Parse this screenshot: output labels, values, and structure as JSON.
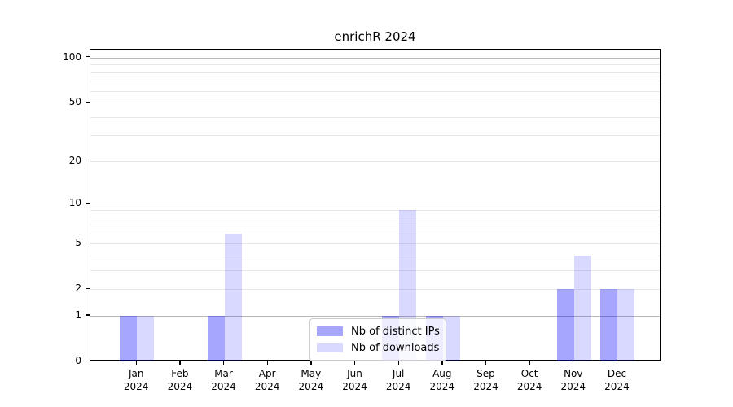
{
  "chart_data": {
    "type": "bar",
    "title": "enrichR 2024",
    "categories": [
      "Jan",
      "Feb",
      "Mar",
      "Apr",
      "May",
      "Jun",
      "Jul",
      "Aug",
      "Sep",
      "Oct",
      "Nov",
      "Dec"
    ],
    "category_year": "2024",
    "series": [
      {
        "name": "Nb of distinct IPs",
        "color": "rgba(0,0,255,0.35)",
        "values": [
          1,
          0,
          1,
          0,
          0,
          0,
          1,
          1,
          0,
          0,
          2,
          2
        ]
      },
      {
        "name": "Nb of downloads",
        "color": "rgba(0,0,255,0.15)",
        "values": [
          1,
          0,
          6,
          0,
          0,
          0,
          9,
          1,
          0,
          0,
          4,
          2
        ]
      }
    ],
    "xlabel": "",
    "ylabel": "",
    "yscale": "log1p",
    "ylim": [
      0,
      113
    ],
    "yticks": [
      0,
      1,
      2,
      5,
      10,
      20,
      50,
      100
    ],
    "grid_major": [
      1,
      10,
      100
    ],
    "grid_minor": [
      2,
      3,
      4,
      5,
      6,
      7,
      8,
      9,
      20,
      30,
      40,
      50,
      60,
      70,
      80,
      90
    ],
    "grid": "on",
    "legend_position": "lower center"
  },
  "colors": {
    "bar_distinct_ips": "rgba(0,0,255,0.35)",
    "bar_downloads": "rgba(0,0,255,0.15)",
    "grid_major": "#b8b8b8",
    "grid_minor": "#e8e8e8",
    "axis": "#000000",
    "background": "#ffffff"
  }
}
